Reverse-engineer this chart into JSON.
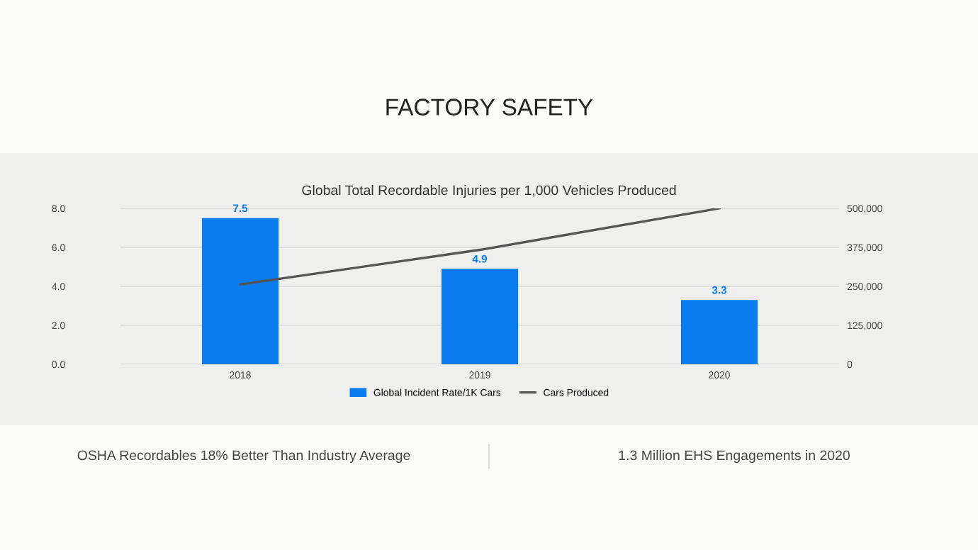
{
  "chart_data": {
    "type": "bar",
    "title": "FACTORY SAFETY",
    "subtitle": "Global Total Recordable Injuries per 1,000 Vehicles Produced",
    "categories": [
      "2018",
      "2019",
      "2020"
    ],
    "series": [
      {
        "name": "Global Incident Rate/1K Cars",
        "color": "#0a7cf0",
        "values": [
          7.5,
          4.9,
          3.3
        ],
        "data_labels": true
      },
      {
        "name": "Cars Produced",
        "type": "line",
        "axis": "y2",
        "color": "#555555",
        "values": [
          256000,
          367000,
          500000
        ]
      }
    ],
    "ylim": [
      0,
      8
    ],
    "yticks": [
      {
        "value": 0,
        "label": "0.0"
      },
      {
        "value": 2,
        "label": "2.0"
      },
      {
        "value": 4,
        "label": "4.0"
      },
      {
        "value": 6,
        "label": "6.0"
      },
      {
        "value": 8,
        "label": "8.0"
      }
    ],
    "y2lim": [
      0,
      500000
    ],
    "y2ticks": [
      {
        "value": 0,
        "label": "0"
      },
      {
        "value": 125000,
        "label": "125,000"
      },
      {
        "value": 250000,
        "label": "250,000"
      },
      {
        "value": 375000,
        "label": "375,000"
      },
      {
        "value": 500000,
        "label": "500,000"
      }
    ],
    "grid": "y",
    "legend": "bottom",
    "annotations": [
      "OSHA Recordables 18% Better Than Industry Average",
      "1.3 Million EHS Engagements in 2020"
    ]
  }
}
